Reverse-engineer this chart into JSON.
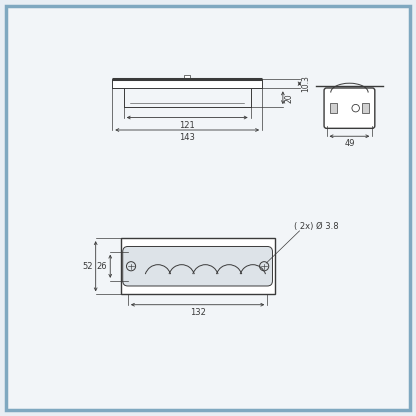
{
  "bg_color": "#e8eef4",
  "border_color": "#7fa8c0",
  "line_color": "#3a3a3a",
  "dim_color": "#3a3a3a",
  "drawing_bg": "#f2f5f8",
  "border_lw": 2.5,
  "fig_width": 4.16,
  "fig_height": 4.16,
  "dpi": 100,
  "labels": {
    "dim_121": "121",
    "dim_143_top": "143",
    "dim_10_3": "10.3",
    "dim_20": "20",
    "dim_49": "49",
    "dim_26": "26",
    "dim_52": "52",
    "dim_132": "132",
    "dim_screw": "( 2x) Ø 3.8"
  }
}
